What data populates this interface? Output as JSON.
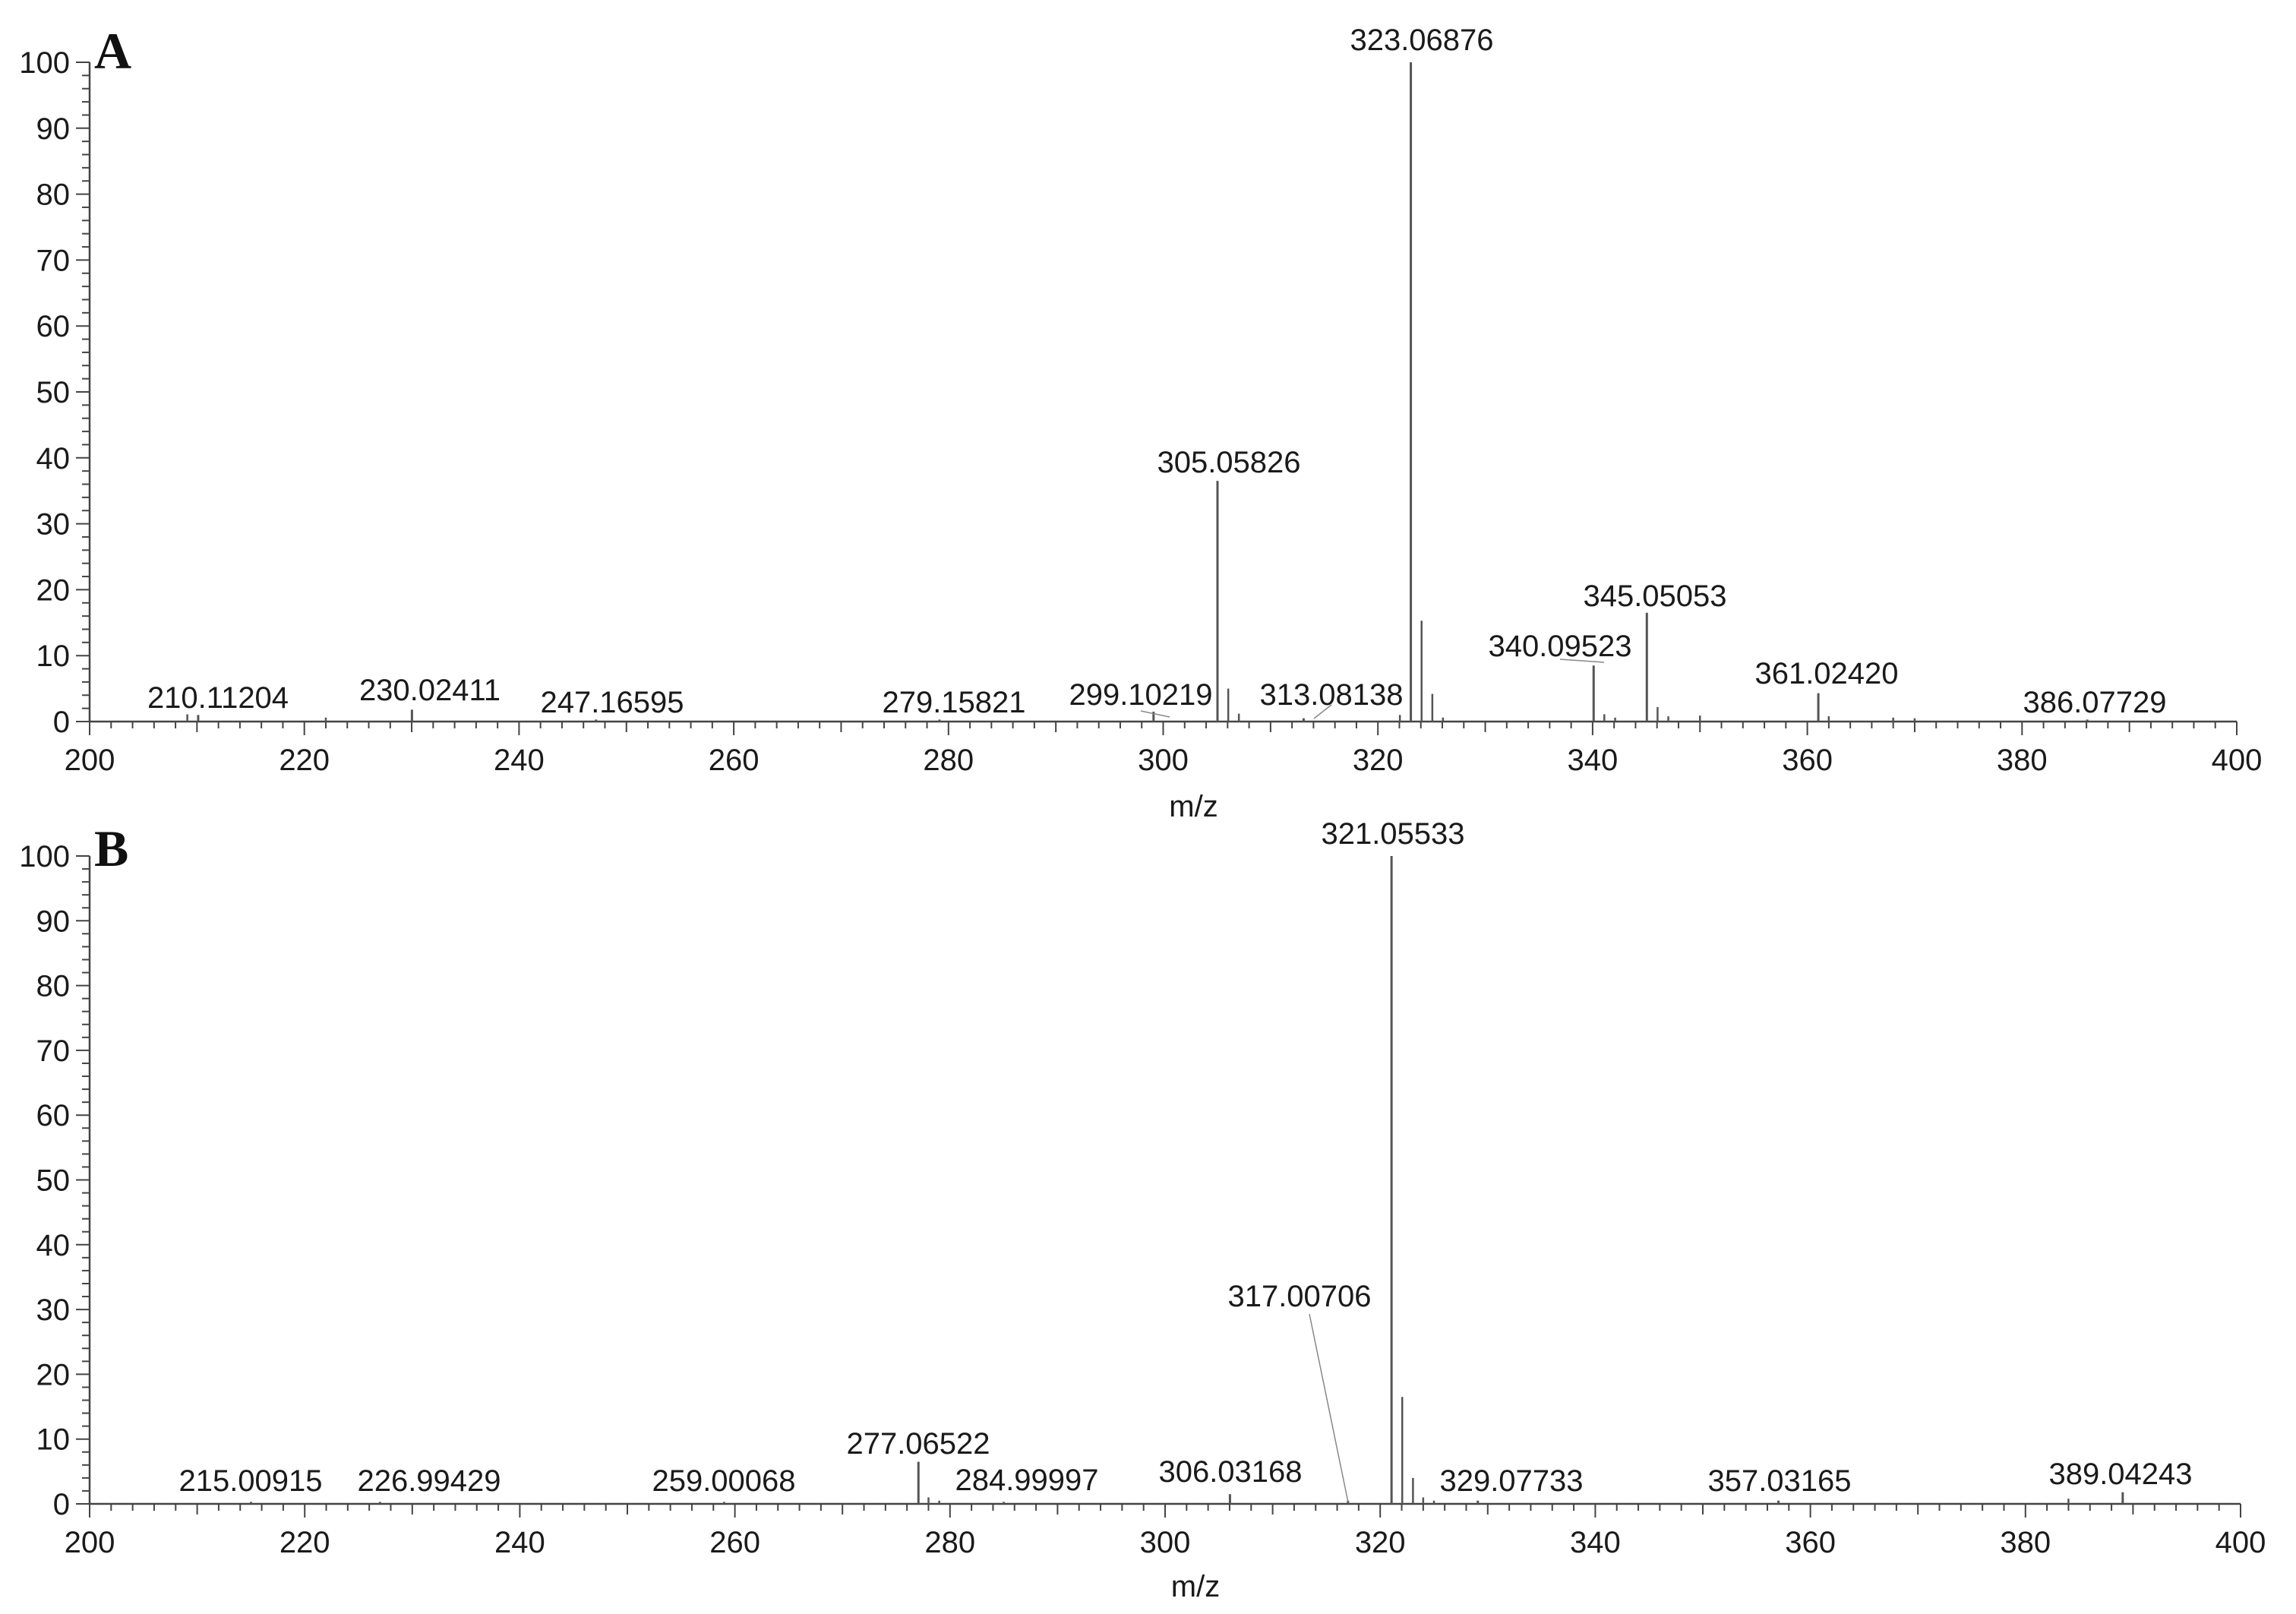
{
  "colors": {
    "axis": "#444444",
    "peak": "#555555",
    "text": "#1a1a1a",
    "background": "#ffffff"
  },
  "chart_data": [
    {
      "type": "bar",
      "panel_label": "A",
      "xlabel": "m/z",
      "ylabel": "",
      "xlim": [
        200,
        400
      ],
      "ylim": [
        0,
        100
      ],
      "x_ticks": [
        200,
        220,
        240,
        260,
        280,
        300,
        320,
        340,
        360,
        380,
        400
      ],
      "y_ticks": [
        0,
        10,
        20,
        30,
        40,
        50,
        60,
        70,
        80,
        90,
        100
      ],
      "grid": false,
      "labeled_peaks": [
        {
          "mz": 210.11204,
          "label": "210.11204",
          "intensity": 1.0
        },
        {
          "mz": 230.02411,
          "label": "230.02411",
          "intensity": 1.8
        },
        {
          "mz": 247.16595,
          "label": "247.16595",
          "intensity": 0.3
        },
        {
          "mz": 279.15821,
          "label": "279.15821",
          "intensity": 0.3
        },
        {
          "mz": 299.10219,
          "label": "299.10219",
          "intensity": 1.5
        },
        {
          "mz": 305.05826,
          "label": "305.05826",
          "intensity": 36.5
        },
        {
          "mz": 313.08138,
          "label": "313.08138",
          "intensity": 0.5
        },
        {
          "mz": 323.06876,
          "label": "323.06876",
          "intensity": 100
        },
        {
          "mz": 340.09523,
          "label": "340.09523",
          "intensity": 8.5
        },
        {
          "mz": 345.05053,
          "label": "345.05053",
          "intensity": 16.5
        },
        {
          "mz": 361.0242,
          "label": "361.02420",
          "intensity": 4.3
        },
        {
          "mz": 386.07729,
          "label": "386.07729",
          "intensity": 0.3
        }
      ],
      "minor_peaks": [
        {
          "mz": 209.1,
          "intensity": 1.1
        },
        {
          "mz": 222.0,
          "intensity": 0.6
        },
        {
          "mz": 306.06,
          "intensity": 5.0
        },
        {
          "mz": 307.05,
          "intensity": 1.2
        },
        {
          "mz": 322.05,
          "intensity": 1.0
        },
        {
          "mz": 324.07,
          "intensity": 15.3
        },
        {
          "mz": 325.07,
          "intensity": 4.2
        },
        {
          "mz": 326.06,
          "intensity": 0.6
        },
        {
          "mz": 341.09,
          "intensity": 1.1
        },
        {
          "mz": 342.1,
          "intensity": 0.6
        },
        {
          "mz": 346.05,
          "intensity": 2.2
        },
        {
          "mz": 347.05,
          "intensity": 0.8
        },
        {
          "mz": 350.0,
          "intensity": 0.9
        },
        {
          "mz": 362.0,
          "intensity": 0.8
        },
        {
          "mz": 368.0,
          "intensity": 0.6
        },
        {
          "mz": 370.0,
          "intensity": 0.5
        }
      ]
    },
    {
      "type": "bar",
      "panel_label": "B",
      "xlabel": "m/z",
      "ylabel": "",
      "xlim": [
        200,
        400
      ],
      "ylim": [
        0,
        100
      ],
      "x_ticks": [
        200,
        220,
        240,
        260,
        280,
        300,
        320,
        340,
        360,
        380,
        400
      ],
      "y_ticks": [
        0,
        10,
        20,
        30,
        40,
        50,
        60,
        70,
        80,
        90,
        100
      ],
      "grid": false,
      "labeled_peaks": [
        {
          "mz": 215.00915,
          "label": "215.00915",
          "intensity": 0.3
        },
        {
          "mz": 226.99429,
          "label": "226.99429",
          "intensity": 0.3
        },
        {
          "mz": 259.00068,
          "label": "259.00068",
          "intensity": 0.3
        },
        {
          "mz": 277.06522,
          "label": "277.06522",
          "intensity": 6.5
        },
        {
          "mz": 284.99997,
          "label": "284.99997",
          "intensity": 0.3
        },
        {
          "mz": 306.03168,
          "label": "306.03168",
          "intensity": 1.5
        },
        {
          "mz": 317.00706,
          "label": "317.00706",
          "intensity": 0.5
        },
        {
          "mz": 321.05533,
          "label": "321.05533",
          "intensity": 100
        },
        {
          "mz": 329.07733,
          "label": "329.07733",
          "intensity": 0.5
        },
        {
          "mz": 357.03165,
          "label": "357.03165",
          "intensity": 0.5
        },
        {
          "mz": 389.04243,
          "label": "389.04243",
          "intensity": 1.8
        }
      ],
      "minor_peaks": [
        {
          "mz": 278.0,
          "intensity": 1.0
        },
        {
          "mz": 279.0,
          "intensity": 0.5
        },
        {
          "mz": 322.05,
          "intensity": 16.5
        },
        {
          "mz": 323.05,
          "intensity": 4.0
        },
        {
          "mz": 324.0,
          "intensity": 1.0
        },
        {
          "mz": 325.0,
          "intensity": 0.5
        },
        {
          "mz": 384.0,
          "intensity": 0.8
        }
      ]
    }
  ]
}
